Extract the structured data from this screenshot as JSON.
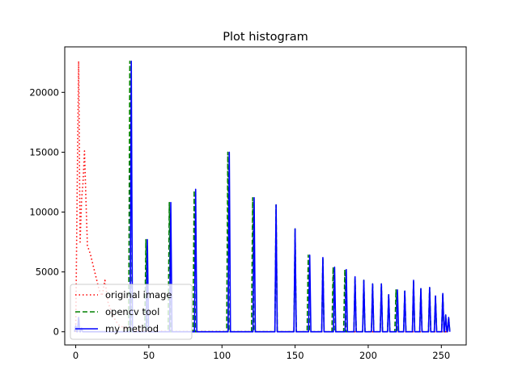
{
  "chart_data": {
    "type": "line",
    "title": "Plot histogram",
    "xlabel": "",
    "ylabel": "",
    "xlim": [
      -7.5,
      267
    ],
    "ylim": [
      -1100,
      23800
    ],
    "xticks": [
      0,
      50,
      100,
      150,
      200,
      250
    ],
    "yticks": [
      0,
      5000,
      10000,
      15000,
      20000
    ],
    "grid": false,
    "legend_position": "lower left",
    "series": [
      {
        "name": "original image",
        "color": "#ff0000",
        "style": "dotted",
        "x": [
          0,
          1,
          2,
          3,
          4,
          5,
          6,
          7,
          8,
          10,
          12,
          14,
          16,
          18,
          20,
          22,
          24,
          26,
          28,
          30,
          34,
          38,
          45,
          60,
          80,
          120,
          160,
          200,
          255
        ],
        "values": [
          0,
          12000,
          22600,
          7500,
          11000,
          12500,
          15100,
          11000,
          7200,
          6500,
          5500,
          4500,
          3500,
          3000,
          4300,
          2500,
          1800,
          1200,
          800,
          500,
          300,
          150,
          80,
          40,
          20,
          10,
          5,
          2,
          0
        ]
      },
      {
        "name": "opencv tool",
        "color": "#008000",
        "style": "dashed",
        "peaks": [
          {
            "x": 0,
            "y": 500
          },
          {
            "x": 2,
            "y": 1200
          },
          {
            "x": 4,
            "y": 300
          },
          {
            "x": 37,
            "y": 22600
          },
          {
            "x": 48,
            "y": 7700
          },
          {
            "x": 64,
            "y": 10800
          },
          {
            "x": 81,
            "y": 11800
          },
          {
            "x": 104,
            "y": 15000
          },
          {
            "x": 121,
            "y": 11200
          },
          {
            "x": 137,
            "y": 10600
          },
          {
            "x": 150,
            "y": 8600
          },
          {
            "x": 159,
            "y": 6400
          },
          {
            "x": 169,
            "y": 6200
          },
          {
            "x": 176,
            "y": 5400
          },
          {
            "x": 184,
            "y": 5200
          },
          {
            "x": 191,
            "y": 4600
          },
          {
            "x": 197,
            "y": 4300
          },
          {
            "x": 203,
            "y": 4000
          },
          {
            "x": 209,
            "y": 4000
          },
          {
            "x": 214,
            "y": 3100
          },
          {
            "x": 219,
            "y": 3500
          },
          {
            "x": 225,
            "y": 3400
          },
          {
            "x": 231,
            "y": 4300
          },
          {
            "x": 236,
            "y": 3600
          },
          {
            "x": 242,
            "y": 3700
          },
          {
            "x": 246,
            "y": 3000
          },
          {
            "x": 251,
            "y": 3200
          },
          {
            "x": 253,
            "y": 1400
          },
          {
            "x": 255,
            "y": 1200
          }
        ]
      },
      {
        "name": "my method",
        "color": "#0000ff",
        "style": "solid",
        "peaks": [
          {
            "x": 0,
            "y": 500
          },
          {
            "x": 2,
            "y": 1200
          },
          {
            "x": 4,
            "y": 300
          },
          {
            "x": 38,
            "y": 22600
          },
          {
            "x": 49,
            "y": 7700
          },
          {
            "x": 65,
            "y": 10800
          },
          {
            "x": 82,
            "y": 11900
          },
          {
            "x": 105,
            "y": 15000
          },
          {
            "x": 122,
            "y": 11200
          },
          {
            "x": 137,
            "y": 10600
          },
          {
            "x": 150,
            "y": 8600
          },
          {
            "x": 160,
            "y": 6400
          },
          {
            "x": 169,
            "y": 6200
          },
          {
            "x": 177,
            "y": 5400
          },
          {
            "x": 185,
            "y": 5200
          },
          {
            "x": 191,
            "y": 4600
          },
          {
            "x": 197,
            "y": 4300
          },
          {
            "x": 203,
            "y": 4000
          },
          {
            "x": 209,
            "y": 4000
          },
          {
            "x": 214,
            "y": 3100
          },
          {
            "x": 220,
            "y": 3500
          },
          {
            "x": 225,
            "y": 3400
          },
          {
            "x": 231,
            "y": 4300
          },
          {
            "x": 236,
            "y": 3600
          },
          {
            "x": 242,
            "y": 3700
          },
          {
            "x": 246,
            "y": 3000
          },
          {
            "x": 251,
            "y": 3200
          },
          {
            "x": 253,
            "y": 1400
          },
          {
            "x": 255,
            "y": 1200
          }
        ]
      }
    ]
  }
}
